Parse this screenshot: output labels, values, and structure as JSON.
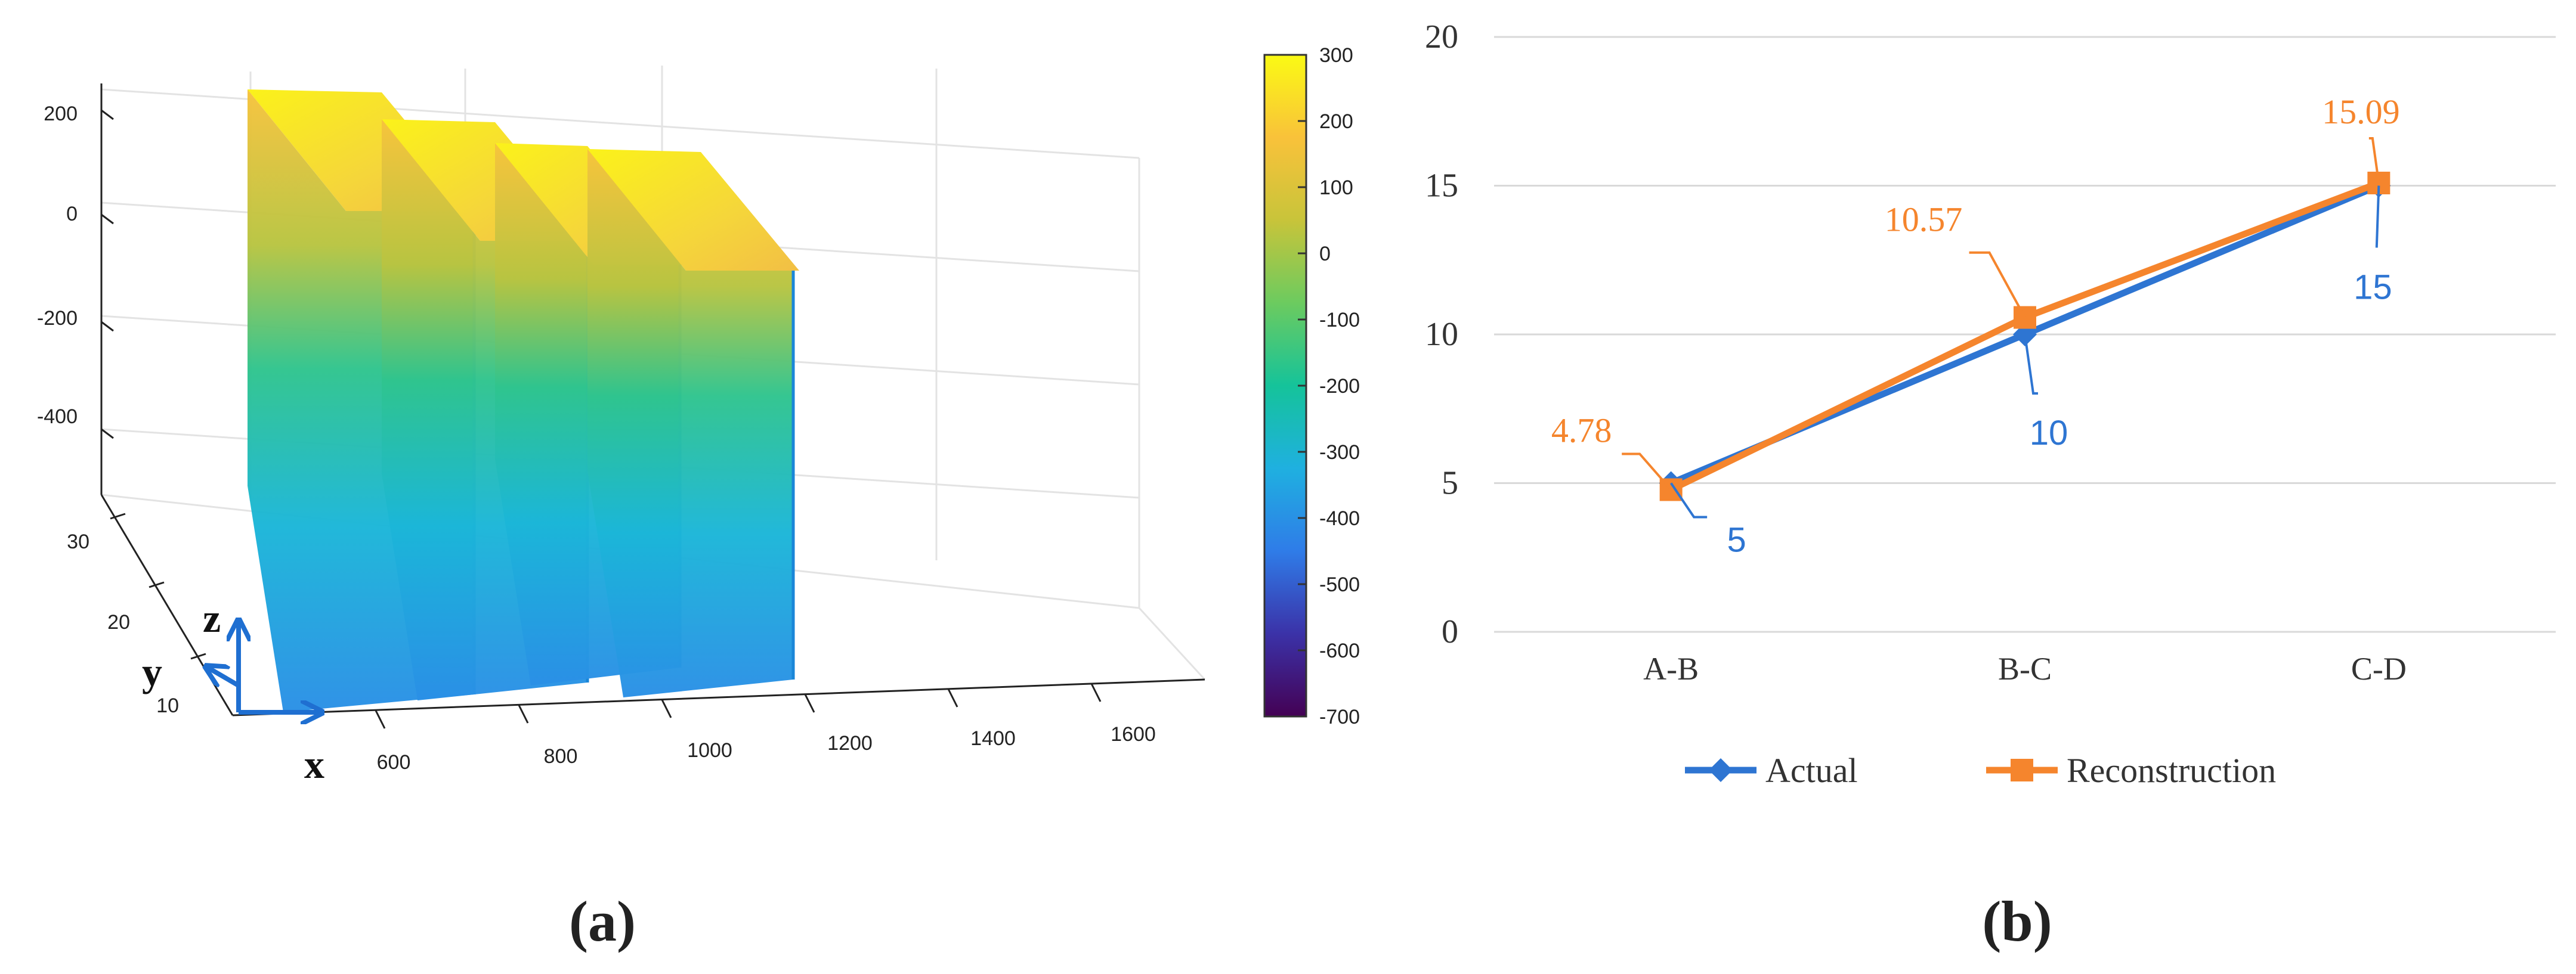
{
  "panels": {
    "a": {
      "label": "(a)",
      "z_ticks": [
        "200",
        "0",
        "-200",
        "-400"
      ],
      "y_ticks": [
        "30",
        "20",
        "10"
      ],
      "x_ticks": [
        "600",
        "800",
        "1000",
        "1200",
        "1400",
        "1600"
      ],
      "colorbar_ticks": [
        "300",
        "200",
        "100",
        "0",
        "-100",
        "-200",
        "-300",
        "-400",
        "-500",
        "-600",
        "-700"
      ],
      "axis_letters": {
        "z": "z",
        "y": "y",
        "x": "x"
      },
      "colormap": [
        "#440154",
        "#3b32a8",
        "#2f7ce8",
        "#1fb0e0",
        "#15c39a",
        "#6ccb5f",
        "#c8c43a",
        "#f9c23a",
        "#fafa14"
      ]
    },
    "b": {
      "label": "(b)"
    }
  },
  "chart_data": [
    {
      "type": "surface3d",
      "xlim": [
        500,
        1700
      ],
      "ylim": [
        5,
        35
      ],
      "zlim": [
        -500,
        250
      ],
      "clim": [
        -700,
        300
      ],
      "x_ticks": [
        600,
        800,
        1000,
        1200,
        1400,
        1600
      ],
      "y_ticks": [
        10,
        20,
        30
      ],
      "z_ticks": [
        200,
        0,
        -200,
        -400
      ],
      "colorbar_ticks": [
        300,
        200,
        100,
        0,
        -100,
        -200,
        -300,
        -400,
        -500,
        -600,
        -700
      ],
      "grid": true
    },
    {
      "type": "line",
      "categories": [
        "A-B",
        "B-C",
        "C-D"
      ],
      "ylim": [
        0,
        20
      ],
      "yticks": [
        "0",
        "5",
        "10",
        "15",
        "20"
      ],
      "grid": true,
      "legend_position": "bottom",
      "series": [
        {
          "name": "Actual",
          "values": [
            5,
            10,
            15
          ],
          "labels": [
            "5",
            "10",
            "15"
          ],
          "color": "#2e75d2",
          "marker": "diamond"
        },
        {
          "name": "Reconstruction",
          "values": [
            4.78,
            10.57,
            15.09
          ],
          "labels": [
            "4.78",
            "10.57",
            "15.09"
          ],
          "color": "#f5852d",
          "marker": "square"
        }
      ]
    }
  ]
}
